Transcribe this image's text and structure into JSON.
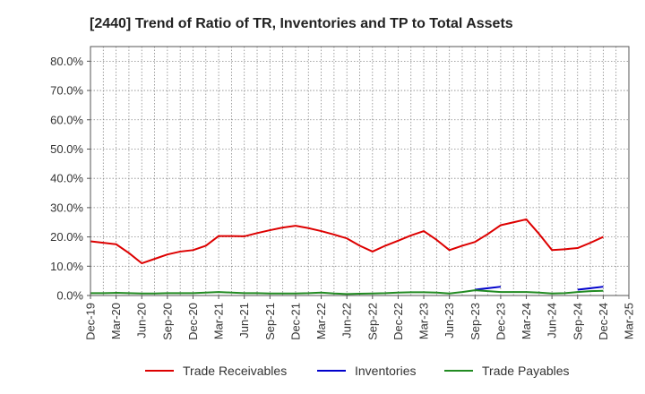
{
  "chart_data": {
    "type": "line",
    "title": "[2440]  Trend of Ratio of TR, Inventories and TP to Total Assets",
    "xlabel": "",
    "ylabel": "",
    "ylim": [
      0,
      85
    ],
    "y_ticks": [
      0,
      10,
      20,
      30,
      40,
      50,
      60,
      70,
      80
    ],
    "y_tick_labels": [
      "0.0%",
      "10.0%",
      "20.0%",
      "30.0%",
      "40.0%",
      "50.0%",
      "60.0%",
      "70.0%",
      "80.0%"
    ],
    "x": [
      "Dec-19",
      "Jan-20",
      "Mar-20",
      "Apr-20",
      "Jun-20",
      "Jul-20",
      "Sep-20",
      "Oct-20",
      "Dec-20",
      "Jan-21",
      "Mar-21",
      "Apr-21",
      "Jun-21",
      "Jul-21",
      "Sep-21",
      "Oct-21",
      "Dec-21",
      "Jan-22",
      "Mar-22",
      "Apr-22",
      "Jun-22",
      "Jul-22",
      "Sep-22",
      "Oct-22",
      "Dec-22",
      "Jan-23",
      "Mar-23",
      "Apr-23",
      "Jun-23",
      "Jul-23",
      "Sep-23",
      "Oct-23",
      "Dec-23",
      "Jan-24",
      "Mar-24",
      "Apr-24",
      "Jun-24",
      "Jul-24",
      "Sep-24",
      "Oct-24",
      "Dec-24",
      "Jan-25",
      "Mar-25"
    ],
    "x_tick_labels": [
      "Dec-19",
      "Mar-20",
      "Jun-20",
      "Sep-20",
      "Dec-20",
      "Mar-21",
      "Jun-21",
      "Sep-21",
      "Dec-21",
      "Mar-22",
      "Jun-22",
      "Sep-22",
      "Dec-22",
      "Mar-23",
      "Jun-23",
      "Sep-23",
      "Dec-23",
      "Mar-24",
      "Jun-24",
      "Sep-24",
      "Dec-24",
      "Mar-25"
    ],
    "grid": true,
    "legend_position": "bottom",
    "series": [
      {
        "name": "Trade Receivables",
        "color": "#dd0000",
        "values": [
          18.5,
          18.0,
          17.5,
          14.5,
          11.0,
          12.5,
          14.0,
          15.0,
          15.5,
          17.0,
          20.3,
          20.3,
          20.2,
          21.3,
          22.3,
          23.2,
          23.8,
          23.0,
          22.0,
          20.8,
          19.5,
          17.0,
          15.0,
          17.0,
          18.7,
          20.5,
          22.0,
          19.0,
          15.5,
          17.0,
          18.3,
          21.0,
          24.0,
          25.0,
          26.0,
          21.0,
          15.5,
          15.8,
          16.2,
          18.0,
          20.0,
          null,
          null
        ]
      },
      {
        "name": "Inventories",
        "color": "#0000cc",
        "values": [
          null,
          null,
          null,
          null,
          null,
          null,
          null,
          null,
          null,
          null,
          null,
          null,
          null,
          null,
          null,
          null,
          null,
          null,
          null,
          null,
          null,
          null,
          null,
          null,
          null,
          null,
          null,
          null,
          null,
          null,
          2.0,
          2.5,
          3.0,
          null,
          null,
          null,
          null,
          null,
          2.0,
          2.5,
          3.0,
          null,
          null
        ]
      },
      {
        "name": "Trade Payables",
        "color": "#228b22",
        "values": [
          0.8,
          0.8,
          0.9,
          0.8,
          0.7,
          0.7,
          0.8,
          0.8,
          0.8,
          1.0,
          1.2,
          1.0,
          0.8,
          0.8,
          0.7,
          0.7,
          0.7,
          0.8,
          1.0,
          0.7,
          0.5,
          0.6,
          0.7,
          0.8,
          1.0,
          1.1,
          1.1,
          1.0,
          0.7,
          1.2,
          1.8,
          1.5,
          1.2,
          1.2,
          1.2,
          1.0,
          0.7,
          0.8,
          1.2,
          1.5,
          1.6,
          null,
          null
        ]
      }
    ]
  }
}
